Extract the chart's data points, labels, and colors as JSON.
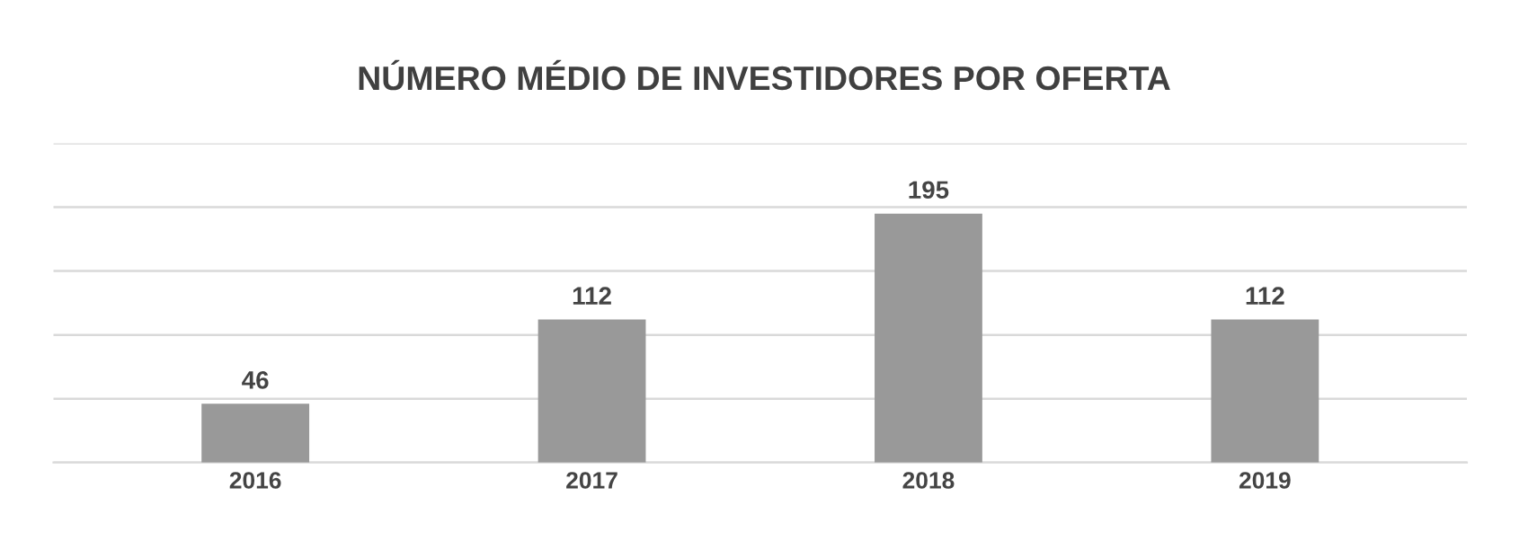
{
  "chart_data": {
    "type": "bar",
    "title": "NÚMERO MÉDIO DE INVESTIDORES POR OFERTA",
    "categories": [
      "2016",
      "2017",
      "2018",
      "2019"
    ],
    "values": [
      46,
      112,
      195,
      112
    ],
    "color": "#999999",
    "ylim": [
      0,
      250
    ],
    "yticks": [
      {
        "value": 0,
        "label": null
      },
      {
        "value": 50,
        "label": null
      },
      {
        "value": 100,
        "label": null
      },
      {
        "value": 150,
        "label": null
      },
      {
        "value": 200,
        "label": null
      },
      {
        "value": 250,
        "label": null
      }
    ],
    "tick_labels": "x",
    "grid": "y",
    "data_labels": true
  }
}
